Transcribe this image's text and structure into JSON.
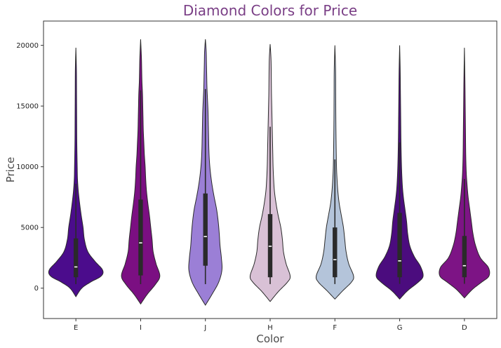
{
  "chart_data": {
    "type": "violin",
    "title": "Diamond Colors for Price",
    "xlabel": "Color",
    "ylabel": "Price",
    "ylim": [
      -2500,
      22000
    ],
    "yticks": [
      0,
      5000,
      10000,
      15000,
      20000
    ],
    "grid": false,
    "legend": "none",
    "categories": [
      "E",
      "I",
      "J",
      "H",
      "F",
      "G",
      "D"
    ],
    "colors": [
      "#4b0c8c",
      "#7b0f82",
      "#9b7fd6",
      "#d9c1d6",
      "#b4c4da",
      "#4b0c7e",
      "#7d1485"
    ],
    "violins": [
      {
        "name": "E",
        "min": -700,
        "max": 19800,
        "q1": 900,
        "median": 1750,
        "q3": 4100,
        "whisker_low": 330,
        "whisker_high": 8600,
        "profile": [
          [
            -700,
            0
          ],
          [
            0,
            0.22
          ],
          [
            500,
            0.55
          ],
          [
            1000,
            0.95
          ],
          [
            1500,
            1.0
          ],
          [
            2200,
            0.72
          ],
          [
            3000,
            0.45
          ],
          [
            4000,
            0.32
          ],
          [
            5000,
            0.27
          ],
          [
            6000,
            0.2
          ],
          [
            7000,
            0.14
          ],
          [
            8000,
            0.09
          ],
          [
            9000,
            0.06
          ],
          [
            10000,
            0.05
          ],
          [
            12000,
            0.035
          ],
          [
            14000,
            0.03
          ],
          [
            16000,
            0.025
          ],
          [
            18000,
            0.02
          ],
          [
            19800,
            0
          ]
        ]
      },
      {
        "name": "I",
        "min": -1300,
        "max": 20500,
        "q1": 1050,
        "median": 3730,
        "q3": 7300,
        "whisker_low": 330,
        "whisker_high": 16300,
        "profile": [
          [
            -1300,
            0
          ],
          [
            -500,
            0.25
          ],
          [
            300,
            0.55
          ],
          [
            1000,
            0.72
          ],
          [
            2000,
            0.58
          ],
          [
            3000,
            0.47
          ],
          [
            4000,
            0.43
          ],
          [
            5000,
            0.38
          ],
          [
            6000,
            0.33
          ],
          [
            7000,
            0.27
          ],
          [
            8000,
            0.22
          ],
          [
            9000,
            0.19
          ],
          [
            10000,
            0.17
          ],
          [
            11000,
            0.14
          ],
          [
            12000,
            0.12
          ],
          [
            13000,
            0.1
          ],
          [
            14000,
            0.09
          ],
          [
            15000,
            0.08
          ],
          [
            16000,
            0.07
          ],
          [
            17000,
            0.05
          ],
          [
            18000,
            0.04
          ],
          [
            19000,
            0.03
          ],
          [
            20500,
            0
          ]
        ]
      },
      {
        "name": "J",
        "min": -1400,
        "max": 20500,
        "q1": 1850,
        "median": 4250,
        "q3": 7800,
        "whisker_low": 330,
        "whisker_high": 16400,
        "profile": [
          [
            -1400,
            0
          ],
          [
            -500,
            0.25
          ],
          [
            500,
            0.5
          ],
          [
            1500,
            0.62
          ],
          [
            2500,
            0.6
          ],
          [
            3500,
            0.55
          ],
          [
            4500,
            0.52
          ],
          [
            5500,
            0.48
          ],
          [
            6500,
            0.42
          ],
          [
            7500,
            0.33
          ],
          [
            8500,
            0.25
          ],
          [
            9500,
            0.19
          ],
          [
            10500,
            0.15
          ],
          [
            11500,
            0.13
          ],
          [
            12500,
            0.12
          ],
          [
            13500,
            0.11
          ],
          [
            14500,
            0.1
          ],
          [
            15500,
            0.08
          ],
          [
            16500,
            0.06
          ],
          [
            17500,
            0.05
          ],
          [
            18500,
            0.04
          ],
          [
            19500,
            0.03
          ],
          [
            20500,
            0
          ]
        ]
      },
      {
        "name": "H",
        "min": -1100,
        "max": 20100,
        "q1": 900,
        "median": 3450,
        "q3": 6100,
        "whisker_low": 340,
        "whisker_high": 13300,
        "profile": [
          [
            -1100,
            0
          ],
          [
            -300,
            0.3
          ],
          [
            500,
            0.65
          ],
          [
            1000,
            0.75
          ],
          [
            2000,
            0.6
          ],
          [
            3000,
            0.5
          ],
          [
            4000,
            0.46
          ],
          [
            5000,
            0.4
          ],
          [
            6000,
            0.3
          ],
          [
            7000,
            0.22
          ],
          [
            8000,
            0.16
          ],
          [
            9000,
            0.13
          ],
          [
            10000,
            0.11
          ],
          [
            11000,
            0.1
          ],
          [
            12000,
            0.09
          ],
          [
            13000,
            0.08
          ],
          [
            14000,
            0.07
          ],
          [
            15000,
            0.06
          ],
          [
            16000,
            0.05
          ],
          [
            17000,
            0.045
          ],
          [
            18000,
            0.04
          ],
          [
            19000,
            0.03
          ],
          [
            20100,
            0
          ]
        ]
      },
      {
        "name": "F",
        "min": -900,
        "max": 20000,
        "q1": 900,
        "median": 2350,
        "q3": 5000,
        "whisker_low": 340,
        "whisker_high": 10600,
        "profile": [
          [
            -900,
            0
          ],
          [
            -200,
            0.3
          ],
          [
            500,
            0.62
          ],
          [
            1000,
            0.7
          ],
          [
            2000,
            0.52
          ],
          [
            3000,
            0.42
          ],
          [
            4000,
            0.37
          ],
          [
            5000,
            0.32
          ],
          [
            6000,
            0.24
          ],
          [
            7000,
            0.16
          ],
          [
            8000,
            0.11
          ],
          [
            9000,
            0.08
          ],
          [
            10000,
            0.06
          ],
          [
            12000,
            0.045
          ],
          [
            14000,
            0.035
          ],
          [
            16000,
            0.03
          ],
          [
            18000,
            0.025
          ],
          [
            20000,
            0
          ]
        ]
      },
      {
        "name": "G",
        "min": -900,
        "max": 20000,
        "q1": 900,
        "median": 2250,
        "q3": 6200,
        "whisker_low": 350,
        "whisker_high": 12000,
        "profile": [
          [
            -900,
            0
          ],
          [
            -200,
            0.3
          ],
          [
            500,
            0.7
          ],
          [
            1000,
            0.88
          ],
          [
            1800,
            0.78
          ],
          [
            2600,
            0.55
          ],
          [
            3500,
            0.38
          ],
          [
            4500,
            0.3
          ],
          [
            5500,
            0.26
          ],
          [
            6500,
            0.2
          ],
          [
            7500,
            0.14
          ],
          [
            8500,
            0.1
          ],
          [
            10000,
            0.07
          ],
          [
            12000,
            0.05
          ],
          [
            14000,
            0.04
          ],
          [
            16000,
            0.03
          ],
          [
            18000,
            0.02
          ],
          [
            20000,
            0
          ]
        ]
      },
      {
        "name": "D",
        "min": -800,
        "max": 19800,
        "q1": 900,
        "median": 1850,
        "q3": 4300,
        "whisker_low": 360,
        "whisker_high": 9000,
        "profile": [
          [
            -800,
            0
          ],
          [
            -100,
            0.3
          ],
          [
            500,
            0.65
          ],
          [
            1000,
            0.92
          ],
          [
            1700,
            0.9
          ],
          [
            2500,
            0.6
          ],
          [
            3500,
            0.42
          ],
          [
            4500,
            0.32
          ],
          [
            5500,
            0.26
          ],
          [
            6500,
            0.2
          ],
          [
            7500,
            0.14
          ],
          [
            8500,
            0.1
          ],
          [
            9500,
            0.07
          ],
          [
            11000,
            0.05
          ],
          [
            13000,
            0.04
          ],
          [
            15000,
            0.03
          ],
          [
            17000,
            0.02
          ],
          [
            19800,
            0
          ]
        ]
      }
    ]
  }
}
